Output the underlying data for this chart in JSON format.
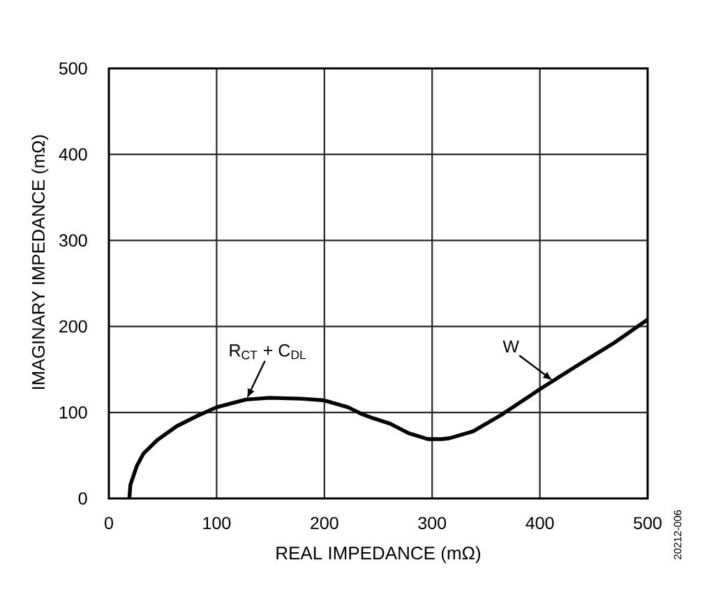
{
  "chart_data": {
    "type": "line",
    "xlabel": "REAL IMPEDANCE (mΩ)",
    "ylabel": "IMAGINARY IMPEDANCE (mΩ)",
    "x": [
      19,
      20,
      26,
      32,
      45,
      63,
      82,
      100,
      127,
      149,
      179,
      200,
      222,
      235,
      246,
      261,
      278,
      296,
      309,
      316,
      338,
      364,
      382,
      400,
      434,
      469,
      500
    ],
    "series": [
      {
        "color": "#000000",
        "values": [
          0,
          16,
          38,
          52,
          68,
          84,
          96,
          106,
          115,
          117,
          116,
          114,
          106,
          98,
          93,
          87,
          76,
          69,
          69,
          70,
          78,
          97,
          112,
          127,
          154,
          181,
          208
        ]
      }
    ],
    "xlim": [
      0,
      500
    ],
    "ylim": [
      0,
      500
    ],
    "xticks": [
      0,
      100,
      200,
      300,
      400,
      500
    ],
    "yticks": [
      0,
      100,
      200,
      300,
      400,
      500
    ],
    "grid": true,
    "annotations": [
      {
        "text": "R$_{CT}$ + C$_{DL}$",
        "x": 128,
        "y": 116
      },
      {
        "text": "W",
        "x": 412,
        "y": 137
      },
      "20212-006"
    ]
  }
}
